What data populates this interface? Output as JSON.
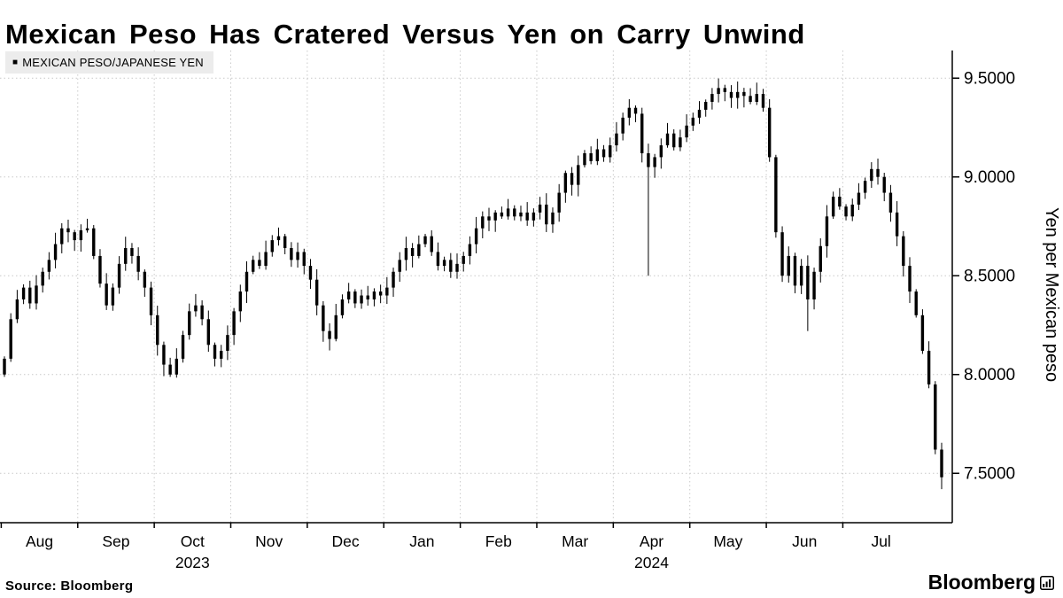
{
  "page": {
    "source_label": "Source: Bloomberg",
    "brand": "Bloomberg"
  },
  "chart_data": {
    "type": "candlestick",
    "title": "Mexican Peso Has Cratered Versus Yen on Carry Unwind",
    "legend": "MEXICAN PESO/JAPANESE YEN",
    "legend_marker": "■",
    "ylabel": "Yen per Mexican peso",
    "ylim": [
      7.25,
      9.64
    ],
    "yticks": [
      7.5,
      8.0,
      8.5,
      9.0,
      9.5
    ],
    "ytick_labels": [
      "7.5000",
      "8.0000",
      "8.5000",
      "9.0000",
      "9.5000"
    ],
    "grid": "dotted",
    "legend_position": "top-left",
    "y_axis_position": "right",
    "x_axis": {
      "months": [
        {
          "label": "Aug",
          "start": 0
        },
        {
          "label": "Sep",
          "start": 12
        },
        {
          "label": "Oct",
          "start": 24,
          "year": "2023"
        },
        {
          "label": "Nov",
          "start": 36
        },
        {
          "label": "Dec",
          "start": 48
        },
        {
          "label": "Jan",
          "start": 60
        },
        {
          "label": "Feb",
          "start": 72
        },
        {
          "label": "Mar",
          "start": 84
        },
        {
          "label": "Apr",
          "start": 96,
          "year": "2024"
        },
        {
          "label": "May",
          "start": 108
        },
        {
          "label": "Jun",
          "start": 120
        },
        {
          "label": "Jul",
          "start": 132
        }
      ]
    },
    "first_open": 8.0,
    "closes": [
      8.08,
      8.28,
      8.38,
      8.44,
      8.36,
      8.45,
      8.52,
      8.58,
      8.66,
      8.74,
      8.72,
      8.68,
      8.73,
      8.74,
      8.6,
      8.46,
      8.35,
      8.44,
      8.56,
      8.64,
      8.6,
      8.52,
      8.44,
      8.3,
      8.15,
      8.05,
      8.0,
      8.08,
      8.2,
      8.32,
      8.35,
      8.28,
      8.15,
      8.08,
      8.12,
      8.2,
      8.32,
      8.42,
      8.52,
      8.58,
      8.55,
      8.62,
      8.68,
      8.7,
      8.64,
      8.58,
      8.62,
      8.55,
      8.48,
      8.35,
      8.22,
      8.18,
      8.3,
      8.38,
      8.42,
      8.36,
      8.4,
      8.38,
      8.42,
      8.4,
      8.44,
      8.52,
      8.58,
      8.64,
      8.6,
      8.66,
      8.7,
      8.62,
      8.55,
      8.58,
      8.52,
      8.56,
      8.6,
      8.66,
      8.74,
      8.8,
      8.78,
      8.82,
      8.8,
      8.84,
      8.8,
      8.82,
      8.78,
      8.82,
      8.86,
      8.76,
      8.82,
      8.92,
      9.02,
      8.96,
      9.06,
      9.12,
      9.08,
      9.14,
      9.1,
      9.16,
      9.22,
      9.3,
      9.35,
      9.32,
      9.12,
      9.05,
      9.1,
      9.16,
      9.22,
      9.15,
      9.2,
      9.26,
      9.3,
      9.34,
      9.38,
      9.42,
      9.45,
      9.43,
      9.4,
      9.43,
      9.41,
      9.38,
      9.42,
      9.35,
      9.1,
      8.72,
      8.5,
      8.6,
      8.45,
      8.55,
      8.38,
      8.52,
      8.65,
      8.8,
      8.9,
      8.85,
      8.8,
      8.86,
      8.92,
      8.98,
      9.04,
      9.0,
      8.92,
      8.82,
      8.7,
      8.55,
      8.42,
      8.3,
      8.12,
      7.95,
      7.62,
      7.48
    ],
    "low_overrides": {
      "101": 8.5,
      "126": 8.22,
      "147": 7.42
    },
    "colors": {
      "candle": "#000000",
      "grid": "#c9c9c9",
      "axis": "#000000",
      "background": "#ffffff",
      "legend_bg": "#ececec"
    }
  }
}
